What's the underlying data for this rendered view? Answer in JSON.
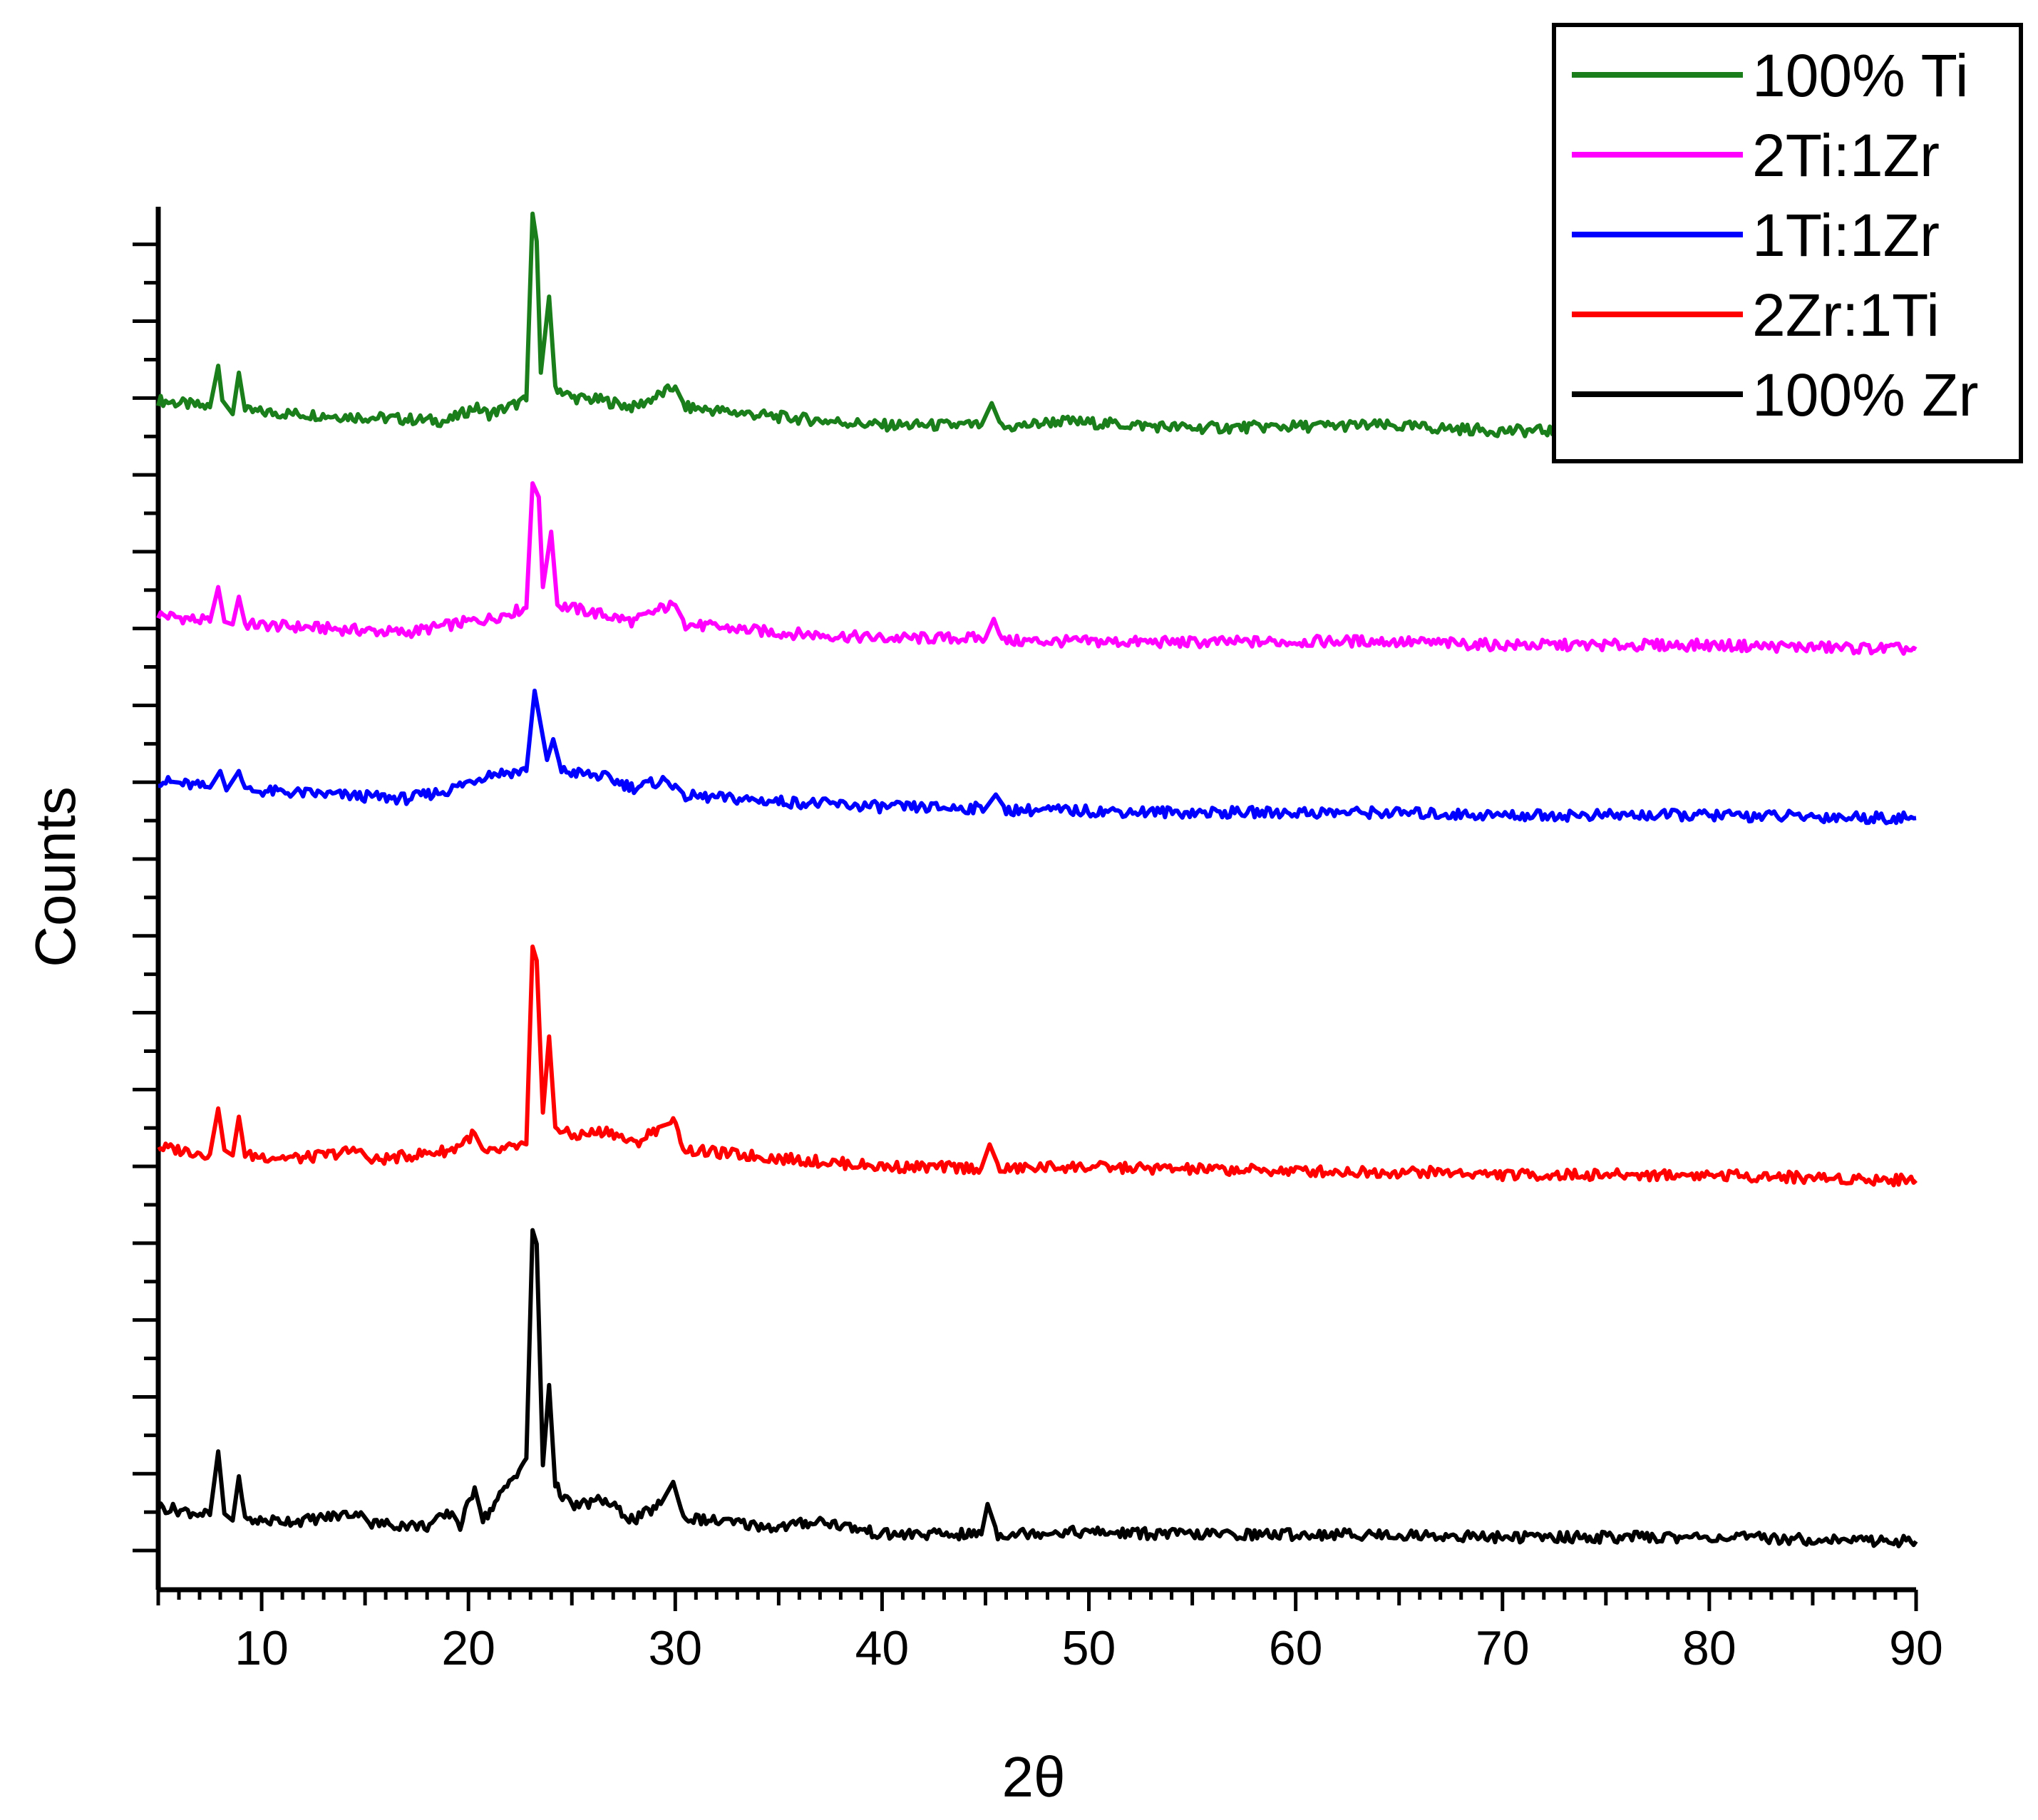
{
  "chart_data": {
    "type": "line",
    "xlabel": "2θ",
    "ylabel": "Counts",
    "xlim": [
      5,
      90
    ],
    "x_ticks": [
      10,
      20,
      30,
      40,
      50,
      60,
      70,
      80,
      90
    ],
    "y_tick_labels_shown": false,
    "grid": false,
    "legend_position": "top-right",
    "offset_stacked": true,
    "series": [
      {
        "name": "100% Ti",
        "color": "#1a7f1a",
        "baseline": 0.86,
        "points": [
          [
            5,
            0.86
          ],
          [
            7.5,
            0.855
          ],
          [
            7.9,
            0.885
          ],
          [
            8.1,
            0.86
          ],
          [
            8.6,
            0.85
          ],
          [
            8.9,
            0.88
          ],
          [
            9.2,
            0.852
          ],
          [
            12,
            0.85
          ],
          [
            19,
            0.845
          ],
          [
            20.3,
            0.855
          ],
          [
            21,
            0.85
          ],
          [
            22.8,
            0.86
          ],
          [
            23.1,
            0.995
          ],
          [
            23.3,
            0.975
          ],
          [
            23.5,
            0.88
          ],
          [
            23.9,
            0.935
          ],
          [
            24.2,
            0.87
          ],
          [
            25,
            0.862
          ],
          [
            26.5,
            0.86
          ],
          [
            28,
            0.855
          ],
          [
            29.4,
            0.865
          ],
          [
            30,
            0.87
          ],
          [
            30.5,
            0.855
          ],
          [
            35,
            0.848
          ],
          [
            40,
            0.842
          ],
          [
            44.8,
            0.842
          ],
          [
            45.3,
            0.858
          ],
          [
            45.8,
            0.84
          ],
          [
            47,
            0.842
          ],
          [
            48.5,
            0.845
          ],
          [
            55,
            0.84
          ],
          [
            63.7,
            0.842
          ],
          [
            70,
            0.838
          ],
          [
            80,
            0.838
          ],
          [
            90,
            0.835
          ]
        ]
      },
      {
        "name": "2Ti:1Zr",
        "color": "#ff00ff",
        "baseline": 0.705,
        "points": [
          [
            5,
            0.705
          ],
          [
            7.5,
            0.7
          ],
          [
            7.9,
            0.725
          ],
          [
            8.2,
            0.7
          ],
          [
            8.6,
            0.698
          ],
          [
            8.9,
            0.718
          ],
          [
            9.2,
            0.698
          ],
          [
            12,
            0.696
          ],
          [
            17,
            0.692
          ],
          [
            20,
            0.7
          ],
          [
            21,
            0.702
          ],
          [
            22.8,
            0.71
          ],
          [
            23.1,
            0.8
          ],
          [
            23.4,
            0.79
          ],
          [
            23.6,
            0.725
          ],
          [
            24,
            0.765
          ],
          [
            24.3,
            0.712
          ],
          [
            26.5,
            0.705
          ],
          [
            28,
            0.7
          ],
          [
            29.4,
            0.71
          ],
          [
            30,
            0.712
          ],
          [
            30.5,
            0.698
          ],
          [
            35,
            0.692
          ],
          [
            40,
            0.688
          ],
          [
            45,
            0.688
          ],
          [
            45.4,
            0.702
          ],
          [
            45.8,
            0.686
          ],
          [
            55,
            0.685
          ],
          [
            63.8,
            0.686
          ],
          [
            70,
            0.683
          ],
          [
            80,
            0.683
          ],
          [
            90,
            0.68
          ]
        ]
      },
      {
        "name": "1Ti:1Zr",
        "color": "#0000ff",
        "baseline": 0.585,
        "points": [
          [
            5,
            0.585
          ],
          [
            7.5,
            0.58
          ],
          [
            8,
            0.592
          ],
          [
            8.3,
            0.578
          ],
          [
            8.9,
            0.592
          ],
          [
            9.2,
            0.578
          ],
          [
            12,
            0.576
          ],
          [
            17,
            0.572
          ],
          [
            19,
            0.578
          ],
          [
            21,
            0.59
          ],
          [
            22.8,
            0.592
          ],
          [
            23.2,
            0.65
          ],
          [
            23.5,
            0.625
          ],
          [
            23.8,
            0.6
          ],
          [
            24.1,
            0.615
          ],
          [
            24.5,
            0.592
          ],
          [
            26.5,
            0.588
          ],
          [
            28,
            0.58
          ],
          [
            29.4,
            0.585
          ],
          [
            30,
            0.582
          ],
          [
            30.5,
            0.574
          ],
          [
            35,
            0.57
          ],
          [
            40,
            0.566
          ],
          [
            45,
            0.565
          ],
          [
            45.5,
            0.575
          ],
          [
            46,
            0.564
          ],
          [
            55,
            0.562
          ],
          [
            63.8,
            0.562
          ],
          [
            70,
            0.56
          ],
          [
            80,
            0.56
          ],
          [
            90,
            0.558
          ]
        ]
      },
      {
        "name": "2Zr:1Ti",
        "color": "#ff0000",
        "baseline": 0.32,
        "points": [
          [
            5,
            0.32
          ],
          [
            7.5,
            0.315
          ],
          [
            7.9,
            0.348
          ],
          [
            8.2,
            0.318
          ],
          [
            8.6,
            0.314
          ],
          [
            8.9,
            0.342
          ],
          [
            9.2,
            0.314
          ],
          [
            12,
            0.312
          ],
          [
            14.8,
            0.318
          ],
          [
            15.2,
            0.31
          ],
          [
            19.2,
            0.318
          ],
          [
            20.3,
            0.33
          ],
          [
            20.8,
            0.315
          ],
          [
            22.8,
            0.322
          ],
          [
            23.1,
            0.465
          ],
          [
            23.3,
            0.455
          ],
          [
            23.6,
            0.345
          ],
          [
            23.9,
            0.4
          ],
          [
            24.2,
            0.335
          ],
          [
            25,
            0.328
          ],
          [
            26.8,
            0.332
          ],
          [
            28,
            0.322
          ],
          [
            29.3,
            0.335
          ],
          [
            29.9,
            0.338
          ],
          [
            30.5,
            0.318
          ],
          [
            35,
            0.312
          ],
          [
            40,
            0.306
          ],
          [
            44.8,
            0.305
          ],
          [
            45.2,
            0.322
          ],
          [
            45.7,
            0.304
          ],
          [
            48.5,
            0.306
          ],
          [
            55,
            0.304
          ],
          [
            63.7,
            0.302
          ],
          [
            67,
            0.302
          ],
          [
            70,
            0.3
          ],
          [
            80,
            0.3
          ],
          [
            90,
            0.296
          ]
        ]
      },
      {
        "name": "100% Zr",
        "color": "#000000",
        "baseline": 0.06,
        "points": [
          [
            5,
            0.06
          ],
          [
            7.5,
            0.054
          ],
          [
            7.9,
            0.1
          ],
          [
            8.2,
            0.055
          ],
          [
            8.6,
            0.05
          ],
          [
            8.9,
            0.082
          ],
          [
            9.2,
            0.05
          ],
          [
            12,
            0.05
          ],
          [
            14.8,
            0.056
          ],
          [
            15.2,
            0.048
          ],
          [
            18,
            0.046
          ],
          [
            19.2,
            0.056
          ],
          [
            19.6,
            0.046
          ],
          [
            20.3,
            0.074
          ],
          [
            20.7,
            0.05
          ],
          [
            22.8,
            0.095
          ],
          [
            23.1,
            0.26
          ],
          [
            23.3,
            0.25
          ],
          [
            23.6,
            0.09
          ],
          [
            23.9,
            0.148
          ],
          [
            24.2,
            0.075
          ],
          [
            25,
            0.06
          ],
          [
            26.5,
            0.065
          ],
          [
            28,
            0.05
          ],
          [
            29.3,
            0.062
          ],
          [
            29.9,
            0.078
          ],
          [
            30.4,
            0.052
          ],
          [
            35,
            0.045
          ],
          [
            37,
            0.05
          ],
          [
            40,
            0.04
          ],
          [
            44.8,
            0.04
          ],
          [
            45.1,
            0.062
          ],
          [
            45.6,
            0.04
          ],
          [
            48.5,
            0.042
          ],
          [
            55,
            0.04
          ],
          [
            63.8,
            0.04
          ],
          [
            70,
            0.038
          ],
          [
            80,
            0.038
          ],
          [
            90,
            0.035
          ]
        ]
      }
    ]
  }
}
